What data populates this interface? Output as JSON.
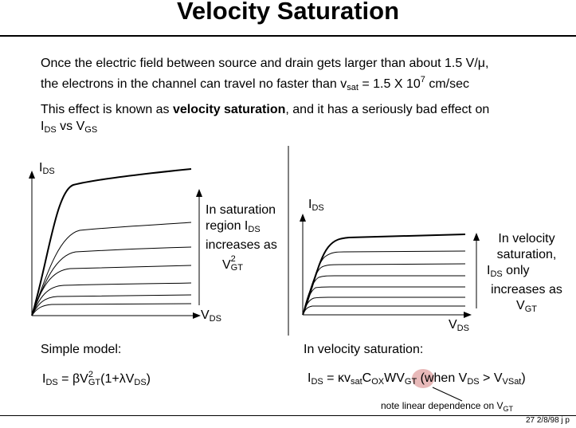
{
  "title": "Velocity Saturation",
  "intro": {
    "line1": "Once the electric field between source and drain gets larger than about 1.5 V/μ,",
    "line2_pre": "the electrons in the channel can travel no faster than v",
    "line2_sub": "sat",
    "line2_mid": " = 1.5 X 10",
    "line2_sup": "7",
    "line2_post": " cm/sec"
  },
  "effect": {
    "pre": "This effect is known as ",
    "bold": "velocity saturation",
    "post": ", and it has a seriously bad effect on",
    "line2_a": "I",
    "line2_a_sub": "DS",
    "line2_b": " vs V",
    "line2_b_sub": "GS"
  },
  "left_graph": {
    "y_axis": "I",
    "y_axis_sub": "DS",
    "x_axis": "V",
    "x_axis_sub": "DS",
    "note_line1": "In saturation",
    "note_line2": "region I",
    "note_line2_sub": "DS",
    "note_line3": "increases as",
    "note_line4": "V",
    "note_line4_sup": "2",
    "note_line4_sub": "GT"
  },
  "right_graph": {
    "y_axis": "I",
    "y_axis_sub": "DS",
    "x_axis": "V",
    "x_axis_sub": "DS",
    "note_line1": "In velocity",
    "note_line2": "saturation,",
    "note_line3": "I",
    "note_line3_sub": "DS",
    "note_line3_post": " only",
    "note_line4": "increases as",
    "note_line5": "V",
    "note_line5_sub": "GT"
  },
  "simple_model": {
    "heading": "Simple model:",
    "f_a": "I",
    "f_a_sub": "DS",
    "f_b": " = βV",
    "f_b_sup": "2",
    "f_b_sub": "GT",
    "f_c": "(1+λV",
    "f_c_sub": "DS",
    "f_d": ")"
  },
  "vsat_model": {
    "heading": "In velocity saturation:",
    "f_a": "I",
    "f_a_sub": "DS",
    "f_b": " = κv",
    "f_b_sub": "sat",
    "f_c": "C",
    "f_c_sub": "OX",
    "f_d": "WV",
    "f_d_sub": "GT",
    "f_e": "  (when V",
    "f_e_sub": "DS",
    "f_f": " > V",
    "f_f_sub": "VSat",
    "f_g": ")"
  },
  "annotation": {
    "text": "note linear dependence on V",
    "text_sub": "GT"
  },
  "footer": "27  2/8/98  j p",
  "colors": {
    "highlight": "#d98a8a"
  }
}
